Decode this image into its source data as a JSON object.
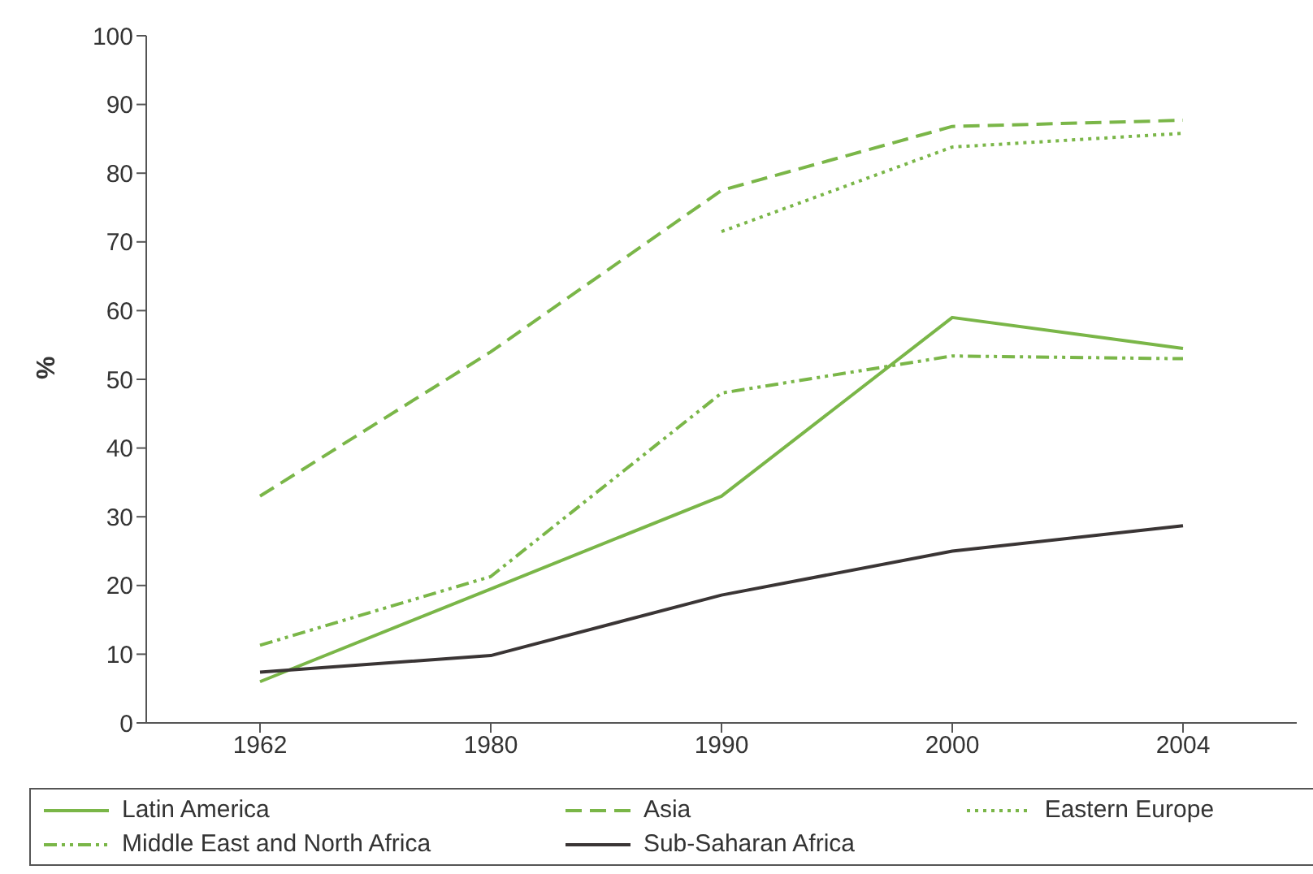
{
  "chart_data": {
    "type": "line",
    "ylabel": "%",
    "categories": [
      "1962",
      "1980",
      "1990",
      "2000",
      "2004"
    ],
    "ylim": [
      0,
      100
    ],
    "yticks": [
      0,
      10,
      20,
      30,
      40,
      50,
      60,
      70,
      80,
      90,
      100
    ],
    "grid": false,
    "legend": "bottom",
    "marker": "none",
    "series": [
      {
        "name": "Latin America",
        "color": "#7ab648",
        "line_style": "solid",
        "values": [
          6,
          19.5,
          33,
          59,
          54.5
        ]
      },
      {
        "name": "Asia",
        "color": "#7ab648",
        "line_style": "dashed",
        "values": [
          33,
          54,
          77.5,
          86.8,
          87.7
        ]
      },
      {
        "name": "Eastern Europe",
        "color": "#7ab648",
        "line_style": "dotted",
        "values": [
          null,
          null,
          71.5,
          83.8,
          85.8
        ]
      },
      {
        "name": "Middle East and North Africa",
        "color": "#7ab648",
        "line_style": "dashdot",
        "values": [
          11.3,
          21.3,
          48,
          53.4,
          53
        ]
      },
      {
        "name": "Sub-Saharan Africa",
        "color": "#3a3535",
        "line_style": "solid",
        "values": [
          7.4,
          9.8,
          18.6,
          25,
          28.7
        ]
      }
    ]
  }
}
